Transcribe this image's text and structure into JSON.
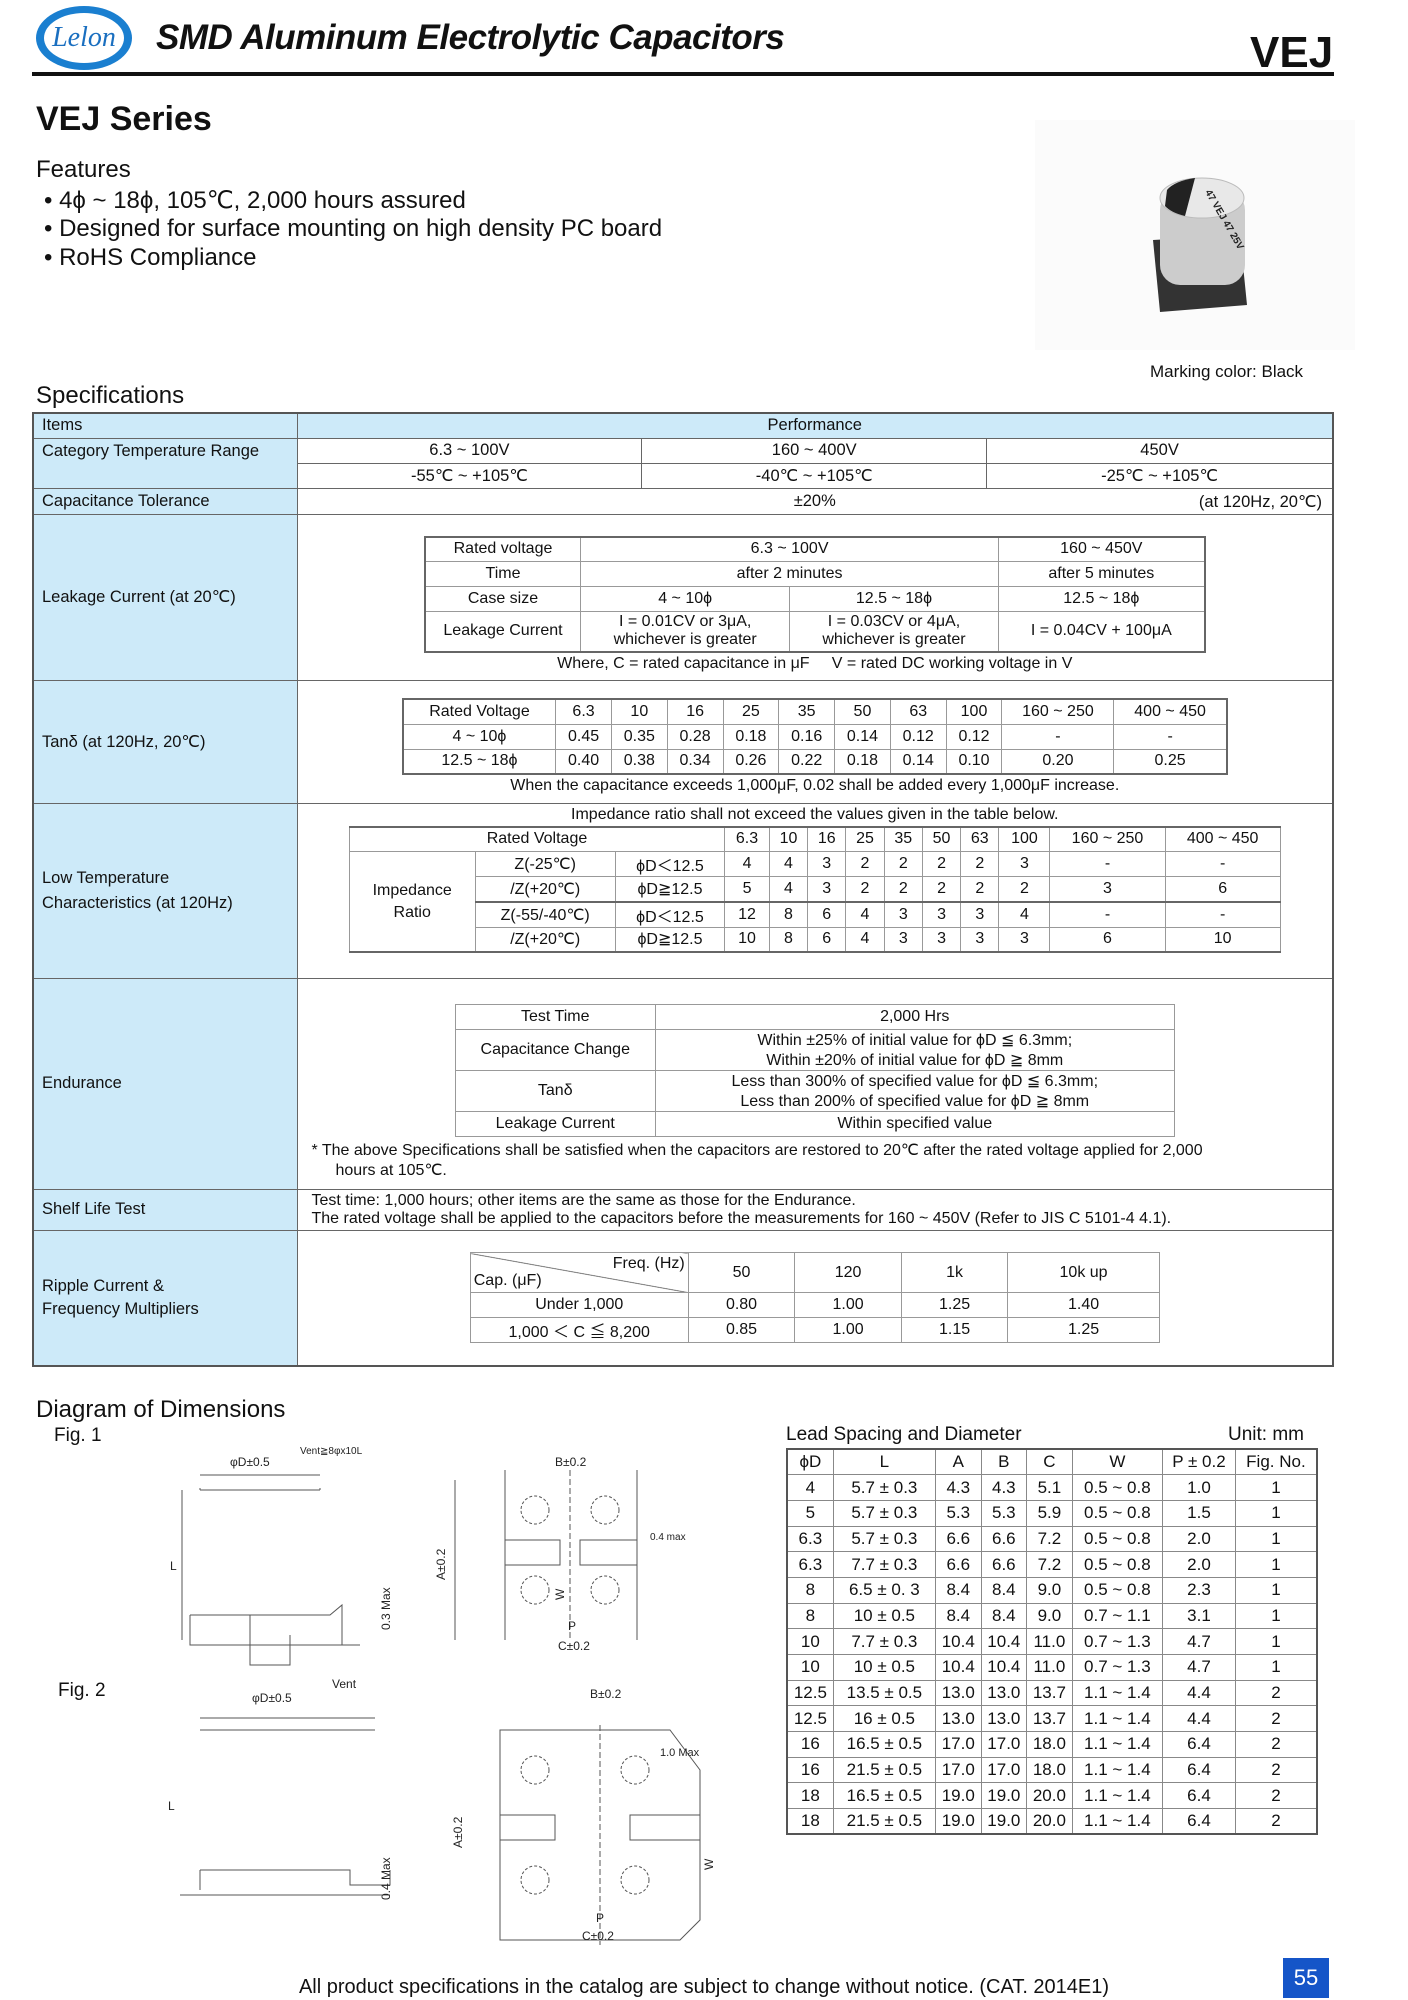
{
  "header": {
    "logo_text": "Lelon",
    "title": "SMD Aluminum Electrolytic Capacitors",
    "series_code": "VEJ"
  },
  "series_title": "VEJ Series",
  "features": {
    "title": "Features",
    "items": [
      "• 4ϕ ~ 18ϕ, 105℃, 2,000 hours assured",
      "• Designed for surface mounting on high density PC board",
      "• RoHS Compliance"
    ]
  },
  "product_image": {
    "marking_text": "47 VEJ 47 25V",
    "marking_color": "Marking color: Black"
  },
  "specifications": {
    "title": "Specifications",
    "headers": [
      "Items",
      "Performance"
    ],
    "category_temperature": {
      "label": "Category Temperature Range",
      "voltages": [
        "6.3 ~ 100V",
        "160 ~ 400V",
        "450V"
      ],
      "temps": [
        "-55℃ ~ +105℃",
        "-40℃ ~ +105℃",
        "-25℃ ~ +105℃"
      ]
    },
    "capacitance_tolerance": {
      "label": "Capacitance Tolerance",
      "value": "±20%",
      "condition": "(at 120Hz, 20℃)"
    },
    "leakage": {
      "label": "Leakage Current (at 20℃)",
      "rows": {
        "rated_voltage": [
          "Rated voltage",
          "6.3 ~ 100V",
          "160 ~ 450V"
        ],
        "time": [
          "Time",
          "after 2 minutes",
          "after 5 minutes"
        ],
        "case": [
          "Case size",
          "4 ~ 10ϕ",
          "12.5 ~ 18ϕ",
          "12.5 ~ 18ϕ"
        ],
        "current": [
          "Leakage Current",
          "I = 0.01CV or 3μA,",
          "whichever is greater",
          "I = 0.03CV or 4μA,",
          "whichever is greater",
          "I = 0.04CV + 100μA"
        ]
      },
      "note": "Where, C = rated capacitance in μF     V = rated DC working voltage in V"
    },
    "tan_delta": {
      "label": "Tanδ (at 120Hz, 20℃)",
      "header": [
        "Rated Voltage",
        "6.3",
        "10",
        "16",
        "25",
        "35",
        "50",
        "63",
        "100",
        "160 ~ 250",
        "400 ~ 450"
      ],
      "rows": [
        [
          "4 ~ 10ϕ",
          "0.45",
          "0.35",
          "0.28",
          "0.18",
          "0.16",
          "0.14",
          "0.12",
          "0.12",
          "-",
          "-"
        ],
        [
          "12.5 ~ 18ϕ",
          "0.40",
          "0.38",
          "0.34",
          "0.26",
          "0.22",
          "0.18",
          "0.14",
          "0.10",
          "0.20",
          "0.25"
        ]
      ],
      "note": "When the capacitance exceeds 1,000μF, 0.02 shall be added every 1,000μF increase."
    },
    "low_temp": {
      "label_1": "Low Temperature",
      "label_2": "Characteristics (at 120Hz)",
      "note": "Impedance ratio shall not exceed the values given in the table below.",
      "header": [
        "Rated Voltage",
        "6.3",
        "10",
        "16",
        "25",
        "35",
        "50",
        "63",
        "100",
        "160 ~ 250",
        "400 ~ 450"
      ],
      "side_1": "Impedance",
      "side_2": "Ratio",
      "rows": [
        [
          "Z(-25℃)",
          "ϕD＜12.5",
          "4",
          "4",
          "3",
          "2",
          "2",
          "2",
          "2",
          "3",
          "-",
          "-"
        ],
        [
          "/Z(+20℃)",
          "ϕD≧12.5",
          "5",
          "4",
          "3",
          "2",
          "2",
          "2",
          "2",
          "2",
          "3",
          "6"
        ],
        [
          "Z(-55/-40℃)",
          "ϕD＜12.5",
          "12",
          "8",
          "6",
          "4",
          "3",
          "3",
          "3",
          "4",
          "-",
          "-"
        ],
        [
          "/Z(+20℃)",
          "ϕD≧12.5",
          "10",
          "8",
          "6",
          "4",
          "3",
          "3",
          "3",
          "3",
          "6",
          "10"
        ]
      ]
    },
    "endurance": {
      "label": "Endurance",
      "rows": [
        [
          "Test Time",
          "2,000 Hrs"
        ],
        [
          "Capacitance Change",
          "Within ±25% of initial value for ϕD ≦ 6.3mm;",
          "Within ±20% of initial value for ϕD ≧ 8mm"
        ],
        [
          "Tanδ",
          "Less than 300% of specified value for ϕD ≦ 6.3mm;",
          "Less than 200% of specified value for ϕD ≧ 8mm"
        ],
        [
          "Leakage Current",
          "Within specified value"
        ]
      ],
      "note_1": "* The above Specifications shall be satisfied when the capacitors are restored to 20℃ after the rated voltage applied for 2,000",
      "note_2": "hours at 105℃."
    },
    "shelf_life": {
      "label": "Shelf Life Test",
      "line_1": "Test time: 1,000 hours; other items are the same as those for the Endurance.",
      "line_2": "The rated voltage shall be applied to the capacitors before the measurements for 160 ~ 450V (Refer to JIS C 5101-4 4.1)."
    },
    "ripple": {
      "label_1": "Ripple Current &",
      "label_2": "Frequency Multipliers",
      "freq_label": "Freq. (Hz)",
      "cap_label": "Cap. (μF)",
      "freqs": [
        "50",
        "120",
        "1k",
        "10k up"
      ],
      "rows": [
        [
          "Under 1,000",
          "0.80",
          "1.00",
          "1.25",
          "1.40"
        ],
        [
          "1,000 ＜ C ≦ 8,200",
          "0.85",
          "1.00",
          "1.15",
          "1.25"
        ]
      ]
    }
  },
  "dimensions": {
    "title": "Diagram of Dimensions",
    "fig1": "Fig. 1",
    "fig2": "Fig. 2",
    "fig1_labels": {
      "diameter": "φD±0.5",
      "vent": "Vent≧8φx10L",
      "L": "L",
      "max": "0.3 Max",
      "A": "A±0.2",
      "B": "B±0.2",
      "max2": "0.4 max",
      "W": "W",
      "P": "P",
      "C": "C±0.2"
    },
    "fig2_labels": {
      "diameter": "φD±0.5",
      "vent": "Vent",
      "L": "L",
      "max": "0.4 Max",
      "A": "A±0.2",
      "B": "B±0.2",
      "max2": "1.0 Max",
      "W": "W",
      "P": "P",
      "C": "C±0.2"
    }
  },
  "lead_table": {
    "title": "Lead Spacing and Diameter",
    "unit": "Unit: mm",
    "headers": [
      "ϕD",
      "L",
      "A",
      "B",
      "C",
      "W",
      "P ± 0.2",
      "Fig. No."
    ],
    "rows": [
      [
        "4",
        "5.7 ± 0.3",
        "4.3",
        "4.3",
        "5.1",
        "0.5 ~ 0.8",
        "1.0",
        "1"
      ],
      [
        "5",
        "5.7 ± 0.3",
        "5.3",
        "5.3",
        "5.9",
        "0.5 ~ 0.8",
        "1.5",
        "1"
      ],
      [
        "6.3",
        "5.7 ± 0.3",
        "6.6",
        "6.6",
        "7.2",
        "0.5 ~ 0.8",
        "2.0",
        "1"
      ],
      [
        "6.3",
        "7.7 ± 0.3",
        "6.6",
        "6.6",
        "7.2",
        "0.5 ~ 0.8",
        "2.0",
        "1"
      ],
      [
        "8",
        "6.5 ± 0. 3",
        "8.4",
        "8.4",
        "9.0",
        "0.5 ~ 0.8",
        "2.3",
        "1"
      ],
      [
        "8",
        "10 ± 0.5",
        "8.4",
        "8.4",
        "9.0",
        "0.7 ~ 1.1",
        "3.1",
        "1"
      ],
      [
        "10",
        "7.7 ± 0.3",
        "10.4",
        "10.4",
        "11.0",
        "0.7 ~ 1.3",
        "4.7",
        "1"
      ],
      [
        "10",
        "10 ± 0.5",
        "10.4",
        "10.4",
        "11.0",
        "0.7 ~ 1.3",
        "4.7",
        "1"
      ],
      [
        "12.5",
        "13.5 ± 0.5",
        "13.0",
        "13.0",
        "13.7",
        "1.1 ~ 1.4",
        "4.4",
        "2"
      ],
      [
        "12.5",
        "16 ± 0.5",
        "13.0",
        "13.0",
        "13.7",
        "1.1 ~ 1.4",
        "4.4",
        "2"
      ],
      [
        "16",
        "16.5 ± 0.5",
        "17.0",
        "17.0",
        "18.0",
        "1.1 ~ 1.4",
        "6.4",
        "2"
      ],
      [
        "16",
        "21.5 ± 0.5",
        "17.0",
        "17.0",
        "18.0",
        "1.1 ~ 1.4",
        "6.4",
        "2"
      ],
      [
        "18",
        "16.5 ± 0.5",
        "19.0",
        "19.0",
        "20.0",
        "1.1 ~ 1.4",
        "6.4",
        "2"
      ],
      [
        "18",
        "21.5 ± 0.5",
        "19.0",
        "19.0",
        "20.0",
        "1.1 ~ 1.4",
        "6.4",
        "2"
      ]
    ]
  },
  "footer": {
    "text": "All product specifications in the catalog are subject to change without notice. (CAT. 2014E1)",
    "page": "55"
  },
  "colors": {
    "header_fill": "#cdeaf9",
    "brand_blue": "#1a7fd0",
    "page_badge": "#1555c8"
  }
}
